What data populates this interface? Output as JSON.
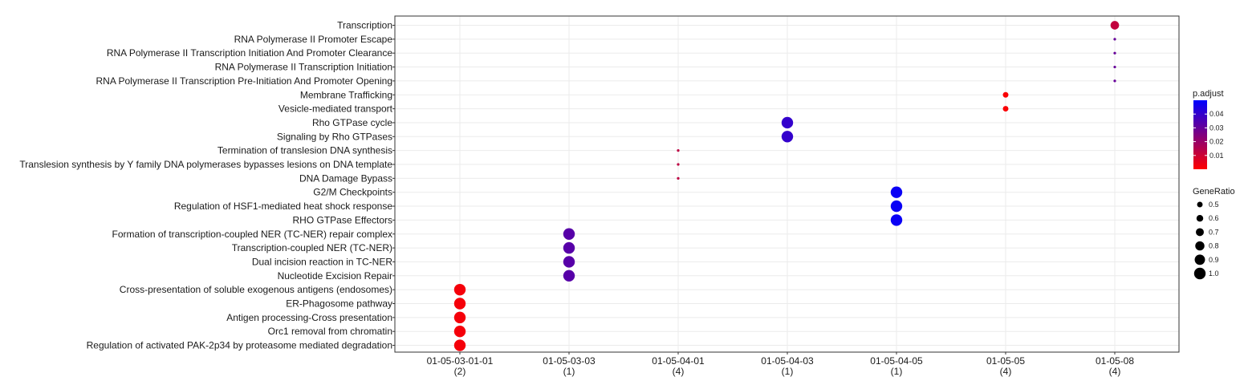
{
  "chart_data": {
    "type": "scatter",
    "title": "",
    "xlabel": "",
    "ylabel": "",
    "grid": true,
    "x_categories": [
      {
        "label": "01-05-03-01-01",
        "count": "(2)"
      },
      {
        "label": "01-05-03-03",
        "count": "(1)"
      },
      {
        "label": "01-05-04-01",
        "count": "(4)"
      },
      {
        "label": "01-05-04-03",
        "count": "(1)"
      },
      {
        "label": "01-05-04-05",
        "count": "(1)"
      },
      {
        "label": "01-05-05",
        "count": "(4)"
      },
      {
        "label": "01-05-08",
        "count": "(4)"
      }
    ],
    "y_categories": [
      "Transcription",
      "RNA Polymerase II Promoter Escape",
      "RNA Polymerase II Transcription Initiation And Promoter Clearance",
      "RNA Polymerase II Transcription Initiation",
      "RNA Polymerase II Transcription Pre-Initiation And Promoter Opening",
      "Membrane Trafficking",
      "Vesicle-mediated transport",
      "Rho GTPase cycle",
      "Signaling by Rho GTPases",
      "Termination of translesion DNA synthesis",
      "Translesion synthesis by Y family DNA polymerases bypasses lesions on DNA template",
      "DNA Damage Bypass",
      "G2/M Checkpoints",
      "Regulation of HSF1-mediated heat shock response",
      "RHO GTPase Effectors",
      "Formation of transcription-coupled NER (TC-NER) repair complex",
      "Transcription-coupled NER (TC-NER)",
      "Dual incision reaction in TC-NER",
      "Nucleotide Excision Repair",
      "Cross-presentation of soluble exogenous antigens (endosomes)",
      "ER-Phagosome pathway",
      "Antigen processing-Cross presentation",
      "Orc1 removal from chromatin",
      "Regulation of activated PAK-2p34 by proteasome mediated degradation"
    ],
    "points": [
      {
        "x": "01-05-08",
        "y": "Transcription",
        "gene_ratio": 0.75,
        "p_adjust": 0.012
      },
      {
        "x": "01-05-08",
        "y": "RNA Polymerase II Promoter Escape",
        "gene_ratio": 0.25,
        "p_adjust": 0.03
      },
      {
        "x": "01-05-08",
        "y": "RNA Polymerase II Transcription Initiation And Promoter Clearance",
        "gene_ratio": 0.25,
        "p_adjust": 0.03
      },
      {
        "x": "01-05-08",
        "y": "RNA Polymerase II Transcription Initiation",
        "gene_ratio": 0.25,
        "p_adjust": 0.03
      },
      {
        "x": "01-05-08",
        "y": "RNA Polymerase II Transcription Pre-Initiation And Promoter Opening",
        "gene_ratio": 0.25,
        "p_adjust": 0.03
      },
      {
        "x": "01-05-05",
        "y": "Membrane Trafficking",
        "gene_ratio": 0.5,
        "p_adjust": 0.001
      },
      {
        "x": "01-05-05",
        "y": "Vesicle-mediated transport",
        "gene_ratio": 0.5,
        "p_adjust": 0.001
      },
      {
        "x": "01-05-04-03",
        "y": "Rho GTPase cycle",
        "gene_ratio": 1.0,
        "p_adjust": 0.04
      },
      {
        "x": "01-05-04-03",
        "y": "Signaling by Rho GTPases",
        "gene_ratio": 1.0,
        "p_adjust": 0.04
      },
      {
        "x": "01-05-04-01",
        "y": "Termination of translesion DNA synthesis",
        "gene_ratio": 0.25,
        "p_adjust": 0.013
      },
      {
        "x": "01-05-04-01",
        "y": "Translesion synthesis by Y family DNA polymerases bypasses lesions on DNA template",
        "gene_ratio": 0.25,
        "p_adjust": 0.013
      },
      {
        "x": "01-05-04-01",
        "y": "DNA Damage Bypass",
        "gene_ratio": 0.25,
        "p_adjust": 0.013
      },
      {
        "x": "01-05-04-05",
        "y": "G2/M Checkpoints",
        "gene_ratio": 1.0,
        "p_adjust": 0.048
      },
      {
        "x": "01-05-04-05",
        "y": "Regulation of HSF1-mediated heat shock response",
        "gene_ratio": 1.0,
        "p_adjust": 0.048
      },
      {
        "x": "01-05-04-05",
        "y": "RHO GTPase Effectors",
        "gene_ratio": 1.0,
        "p_adjust": 0.048
      },
      {
        "x": "01-05-03-03",
        "y": "Formation of transcription-coupled NER (TC-NER) repair complex",
        "gene_ratio": 1.0,
        "p_adjust": 0.033
      },
      {
        "x": "01-05-03-03",
        "y": "Transcription-coupled NER (TC-NER)",
        "gene_ratio": 1.0,
        "p_adjust": 0.033
      },
      {
        "x": "01-05-03-03",
        "y": "Dual incision reaction in TC-NER",
        "gene_ratio": 1.0,
        "p_adjust": 0.033
      },
      {
        "x": "01-05-03-03",
        "y": "Nucleotide Excision Repair",
        "gene_ratio": 1.0,
        "p_adjust": 0.033
      },
      {
        "x": "01-05-03-01-01",
        "y": "Cross-presentation of soluble exogenous antigens (endosomes)",
        "gene_ratio": 1.0,
        "p_adjust": 0.002
      },
      {
        "x": "01-05-03-01-01",
        "y": "ER-Phagosome pathway",
        "gene_ratio": 1.0,
        "p_adjust": 0.002
      },
      {
        "x": "01-05-03-01-01",
        "y": "Antigen processing-Cross presentation",
        "gene_ratio": 1.0,
        "p_adjust": 0.002
      },
      {
        "x": "01-05-03-01-01",
        "y": "Orc1 removal from chromatin",
        "gene_ratio": 1.0,
        "p_adjust": 0.002
      },
      {
        "x": "01-05-03-01-01",
        "y": "Regulation of activated PAK-2p34 by proteasome mediated degradation",
        "gene_ratio": 1.0,
        "p_adjust": 0.002
      }
    ],
    "color_legend": {
      "title": "p.adjust",
      "ticks": [
        "0.04",
        "0.03",
        "0.02",
        "0.01"
      ],
      "tick_values": [
        0.04,
        0.03,
        0.02,
        0.01
      ],
      "range": [
        0.0,
        0.05
      ],
      "low_color": "#ff0000",
      "high_color": "#0000ff"
    },
    "size_legend": {
      "title": "GeneRatio",
      "labels": [
        "0.5",
        "0.6",
        "0.7",
        "0.8",
        "0.9",
        "1.0"
      ],
      "values": [
        0.5,
        0.6,
        0.7,
        0.8,
        0.9,
        1.0
      ]
    },
    "legend_position": "right"
  }
}
